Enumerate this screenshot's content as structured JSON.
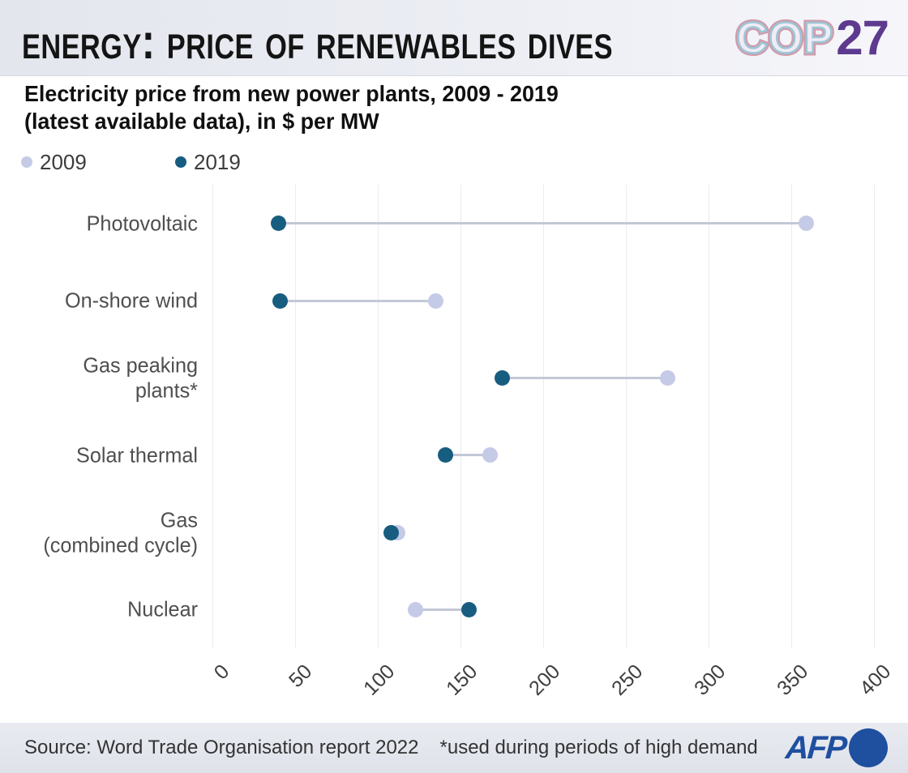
{
  "header": {
    "title": "Energy: Price of renewables dives",
    "logo": {
      "cop": "COP",
      "year": "27"
    }
  },
  "subtitle": {
    "line1": "Electricity price from new power plants, 2009 - 2019",
    "line2": "(latest available data), in $ per MW"
  },
  "legend": {
    "items": [
      {
        "label": "2009",
        "color": "#c5cae7"
      },
      {
        "label": "2019",
        "color": "#175d80"
      }
    ]
  },
  "chart_data": {
    "type": "dumbbell",
    "title": "Electricity price from new power plants, 2009 - 2019 (latest available data), in $ per MW",
    "unit": "$ per MW",
    "categories": [
      "Photovoltaic",
      "On-shore wind",
      "Gas peaking plants*",
      "Solar thermal",
      "Gas (combined cycle)",
      "Nuclear"
    ],
    "categories_display": [
      [
        "Photovoltaic"
      ],
      [
        "On-shore wind"
      ],
      [
        "Gas peaking",
        "plants*"
      ],
      [
        "Solar thermal"
      ],
      [
        "Gas",
        "(combined cycle)"
      ],
      [
        "Nuclear"
      ]
    ],
    "series": [
      {
        "name": "2009",
        "values": [
          359,
          135,
          275,
          168,
          112,
          123
        ],
        "color": "#c5cae7"
      },
      {
        "name": "2019",
        "values": [
          40,
          41,
          175,
          141,
          108,
          155
        ],
        "color": "#175d80"
      }
    ],
    "xlabel": "",
    "ylabel": "",
    "xlim": [
      0,
      400
    ],
    "xticks": [
      0,
      50,
      100,
      150,
      200,
      250,
      300,
      350,
      400
    ],
    "grid": "vertical-only",
    "legend_position": "top-left",
    "colors": {
      "gridline": "#ebebf1",
      "connector": "#c2c8d6",
      "category_text": "#4f4f4f",
      "tick_text": "#3e3e3e"
    }
  },
  "footer": {
    "source": "Source: Word Trade Organisation report 2022",
    "note": "*used during periods of high demand",
    "logo": "AFP"
  }
}
